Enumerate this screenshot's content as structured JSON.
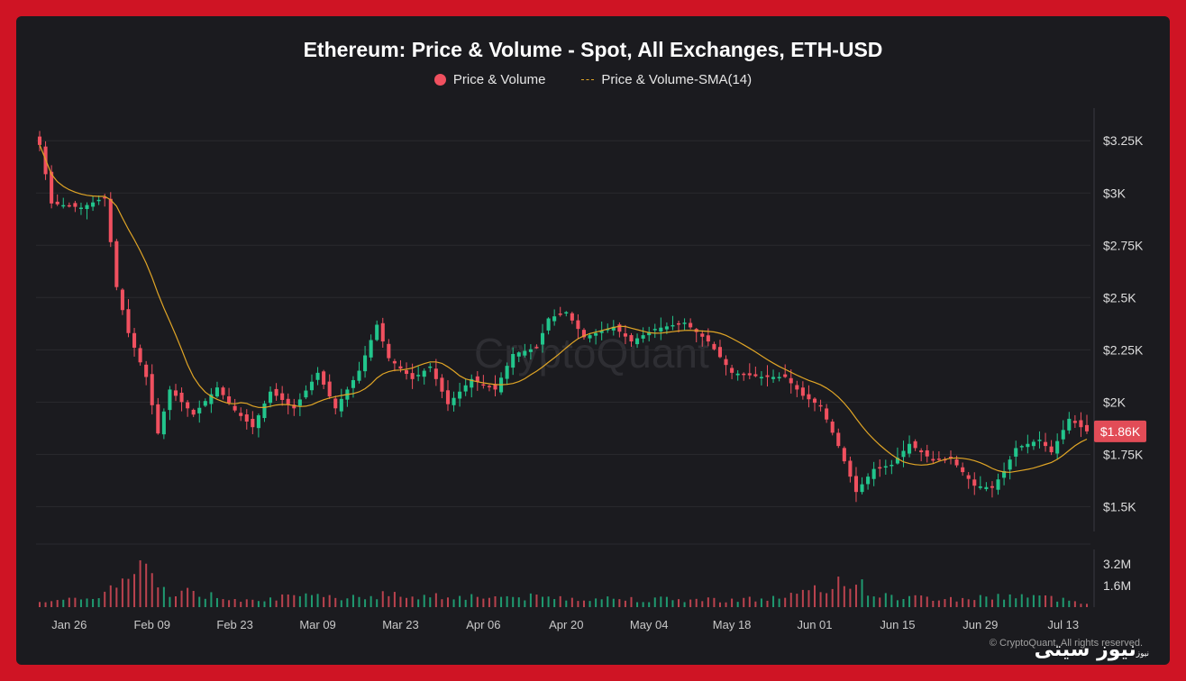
{
  "colors": {
    "up": "#22c58c",
    "down": "#f0505f",
    "sma": "#e0a526",
    "grid": "#2a2a2f",
    "price_badge": "#e24c57"
  },
  "watermark": "CryptoQuant",
  "copyright": "© CryptoQuant. All rights reserved.",
  "brand": {
    "name": "نیوز سیتی",
    "small": "نیوز"
  },
  "chart_data": {
    "type": "candlestick",
    "title": "Ethereum: Price & Volume - Spot, All Exchanges, ETH-USD",
    "legend": [
      {
        "name": "Price & Volume",
        "marker": "dot"
      },
      {
        "name": "Price & Volume-SMA(14)",
        "marker": "dashed-line"
      }
    ],
    "current_price_label": "$1.86K",
    "current_price": 1860,
    "y_price": {
      "ylim": [
        1450,
        3320
      ],
      "ticks": [
        3250,
        3000,
        2750,
        2500,
        2250,
        2000,
        1750,
        1500
      ],
      "tick_labels": [
        "$3.25K",
        "$3K",
        "$2.75K",
        "$2.5K",
        "$2.25K",
        "$2K",
        "$1.75K",
        "$1.5K"
      ]
    },
    "y_volume": {
      "ylim": [
        0,
        3600000
      ],
      "ticks": [
        3200000,
        1600000
      ],
      "tick_labels": [
        "3.2M",
        "1.6M"
      ]
    },
    "x_start": "2026-01-21",
    "x_end": "2026-07-17",
    "x_ticks": [
      {
        "date": "2026-01-26",
        "label": "Jan 26"
      },
      {
        "date": "2026-02-09",
        "label": "Feb 09"
      },
      {
        "date": "2026-02-23",
        "label": "Feb 23"
      },
      {
        "date": "2026-03-09",
        "label": "Mar 09"
      },
      {
        "date": "2026-03-23",
        "label": "Mar 23"
      },
      {
        "date": "2026-04-06",
        "label": "Apr 06"
      },
      {
        "date": "2026-04-20",
        "label": "Apr 20"
      },
      {
        "date": "2026-05-04",
        "label": "May 04"
      },
      {
        "date": "2026-05-18",
        "label": "May 18"
      },
      {
        "date": "2026-06-01",
        "label": "Jun 01"
      },
      {
        "date": "2026-06-15",
        "label": "Jun 15"
      },
      {
        "date": "2026-06-29",
        "label": "Jun 29"
      },
      {
        "date": "2026-07-13",
        "label": "Jul 13"
      }
    ],
    "close_keypoints": [
      {
        "date": "2026-01-21",
        "close": 3230
      },
      {
        "date": "2026-01-23",
        "close": 2950
      },
      {
        "date": "2026-01-28",
        "close": 2930
      },
      {
        "date": "2026-02-01",
        "close": 2980
      },
      {
        "date": "2026-02-03",
        "close": 2550
      },
      {
        "date": "2026-02-05",
        "close": 2330
      },
      {
        "date": "2026-02-08",
        "close": 2120
      },
      {
        "date": "2026-02-10",
        "close": 1850
      },
      {
        "date": "2026-02-12",
        "close": 2060
      },
      {
        "date": "2026-02-16",
        "close": 1940
      },
      {
        "date": "2026-02-20",
        "close": 2070
      },
      {
        "date": "2026-02-23",
        "close": 1960
      },
      {
        "date": "2026-02-26",
        "close": 1880
      },
      {
        "date": "2026-03-01",
        "close": 2050
      },
      {
        "date": "2026-03-05",
        "close": 1970
      },
      {
        "date": "2026-03-09",
        "close": 2140
      },
      {
        "date": "2026-03-12",
        "close": 1970
      },
      {
        "date": "2026-03-16",
        "close": 2150
      },
      {
        "date": "2026-03-19",
        "close": 2370
      },
      {
        "date": "2026-03-21",
        "close": 2210
      },
      {
        "date": "2026-03-25",
        "close": 2110
      },
      {
        "date": "2026-03-28",
        "close": 2170
      },
      {
        "date": "2026-03-31",
        "close": 1990
      },
      {
        "date": "2026-04-04",
        "close": 2110
      },
      {
        "date": "2026-04-08",
        "close": 2060
      },
      {
        "date": "2026-04-11",
        "close": 2230
      },
      {
        "date": "2026-04-15",
        "close": 2260
      },
      {
        "date": "2026-04-17",
        "close": 2400
      },
      {
        "date": "2026-04-20",
        "close": 2430
      },
      {
        "date": "2026-04-23",
        "close": 2310
      },
      {
        "date": "2026-04-28",
        "close": 2360
      },
      {
        "date": "2026-05-01",
        "close": 2290
      },
      {
        "date": "2026-05-05",
        "close": 2350
      },
      {
        "date": "2026-05-10",
        "close": 2380
      },
      {
        "date": "2026-05-14",
        "close": 2290
      },
      {
        "date": "2026-05-18",
        "close": 2140
      },
      {
        "date": "2026-05-23",
        "close": 2120
      },
      {
        "date": "2026-05-27",
        "close": 2120
      },
      {
        "date": "2026-05-30",
        "close": 2030
      },
      {
        "date": "2026-06-02",
        "close": 1980
      },
      {
        "date": "2026-06-05",
        "close": 1790
      },
      {
        "date": "2026-06-08",
        "close": 1570
      },
      {
        "date": "2026-06-11",
        "close": 1680
      },
      {
        "date": "2026-06-14",
        "close": 1700
      },
      {
        "date": "2026-06-17",
        "close": 1800
      },
      {
        "date": "2026-06-21",
        "close": 1720
      },
      {
        "date": "2026-06-24",
        "close": 1730
      },
      {
        "date": "2026-06-28",
        "close": 1600
      },
      {
        "date": "2026-07-01",
        "close": 1590
      },
      {
        "date": "2026-07-03",
        "close": 1670
      },
      {
        "date": "2026-07-05",
        "close": 1780
      },
      {
        "date": "2026-07-09",
        "close": 1820
      },
      {
        "date": "2026-07-11",
        "close": 1760
      },
      {
        "date": "2026-07-14",
        "close": 1920
      },
      {
        "date": "2026-07-17",
        "close": 1860
      }
    ],
    "volume_keypoints": [
      {
        "date": "2026-01-21",
        "volume": 550000
      },
      {
        "date": "2026-01-28",
        "volume": 500000
      },
      {
        "date": "2026-02-03",
        "volume": 1500000
      },
      {
        "date": "2026-02-07",
        "volume": 2900000
      },
      {
        "date": "2026-02-11",
        "volume": 1300000
      },
      {
        "date": "2026-02-23",
        "volume": 650000
      },
      {
        "date": "2026-03-09",
        "volume": 750000
      },
      {
        "date": "2026-03-19",
        "volume": 900000
      },
      {
        "date": "2026-04-04",
        "volume": 800000
      },
      {
        "date": "2026-04-20",
        "volume": 700000
      },
      {
        "date": "2026-05-10",
        "volume": 550000
      },
      {
        "date": "2026-05-24",
        "volume": 600000
      },
      {
        "date": "2026-06-03",
        "volume": 1300000
      },
      {
        "date": "2026-06-06",
        "volume": 2300000
      },
      {
        "date": "2026-06-12",
        "volume": 800000
      },
      {
        "date": "2026-06-25",
        "volume": 600000
      },
      {
        "date": "2026-07-06",
        "volume": 900000
      },
      {
        "date": "2026-07-17",
        "volume": 350000
      }
    ],
    "sma_period": 14,
    "grid": true
  }
}
